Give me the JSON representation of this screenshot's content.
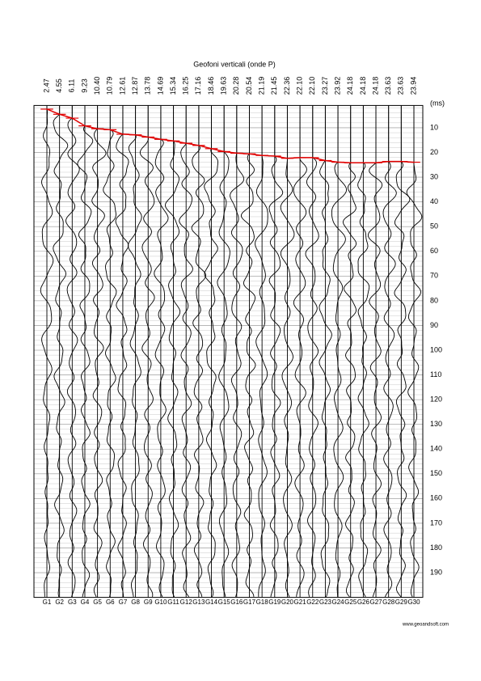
{
  "chart_data": {
    "type": "seismogram",
    "title": "Geofoni verticali (onde P)",
    "y_label": "(ms)",
    "categories": [
      "G1",
      "G2",
      "G3",
      "G4",
      "G5",
      "G6",
      "G7",
      "G8",
      "G9",
      "G10",
      "G11",
      "G12",
      "G13",
      "G14",
      "G15",
      "G16",
      "G17",
      "G18",
      "G19",
      "G20",
      "G21",
      "G22",
      "G23",
      "G24",
      "G25",
      "G26",
      "G27",
      "G28",
      "G29",
      "G30"
    ],
    "values": [
      2.47,
      4.55,
      6.11,
      9.23,
      10.4,
      10.79,
      12.61,
      12.87,
      13.78,
      14.69,
      15.34,
      16.25,
      17.16,
      18.46,
      19.63,
      20.28,
      20.54,
      21.19,
      21.45,
      22.36,
      22.1,
      22.1,
      23.27,
      23.92,
      24.18,
      24.18,
      24.18,
      23.63,
      23.63,
      23.94
    ],
    "value_labels": [
      "2.47",
      "4.55",
      "6.11",
      "9.23",
      "10.40",
      "10.79",
      "12.61",
      "12.87",
      "13.78",
      "14.69",
      "15.34",
      "16.25",
      "17.16",
      "18.46",
      "19.63",
      "20.28",
      "20.54",
      "21.19",
      "21.45",
      "22.36",
      "22.10",
      "22.10",
      "23.27",
      "23.92",
      "24.18",
      "24.18",
      "24.18",
      "23.63",
      "23.63",
      "23.94"
    ],
    "pick_color": "#e00000",
    "ylim": [
      0,
      200
    ],
    "yticks": [
      10,
      20,
      30,
      40,
      50,
      60,
      70,
      80,
      90,
      100,
      110,
      120,
      130,
      140,
      150,
      160,
      170,
      180,
      190
    ],
    "grid": true
  },
  "footer": "www.geoandsoft.com"
}
